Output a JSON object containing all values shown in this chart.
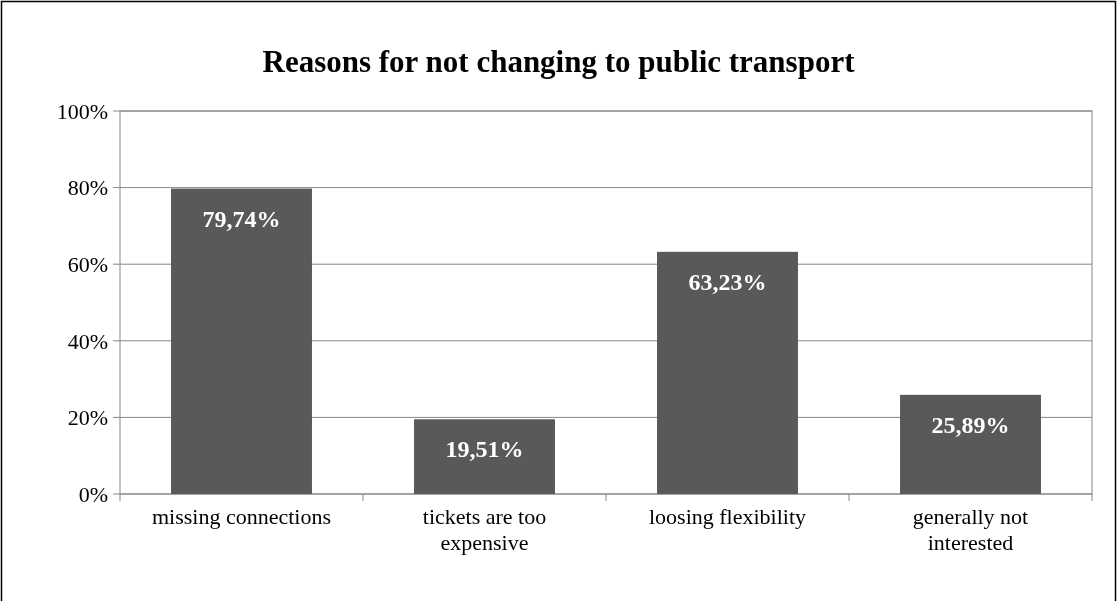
{
  "chart_data": {
    "type": "bar",
    "title": "Reasons for not changing to public transport",
    "categories": [
      "missing connections",
      "tickets are too expensive",
      "loosing flexibility",
      "generally not interested"
    ],
    "values": [
      79.74,
      19.51,
      63.23,
      25.89
    ],
    "value_labels": [
      "79,74%",
      "19,51%",
      "63,23%",
      "25,89%"
    ],
    "color": "#595959",
    "ylim": [
      0,
      100
    ],
    "yticks": [
      {
        "value": 0,
        "label": "0%"
      },
      {
        "value": 20,
        "label": "20%"
      },
      {
        "value": 40,
        "label": "40%"
      },
      {
        "value": 60,
        "label": "60%"
      },
      {
        "value": 80,
        "label": "80%"
      },
      {
        "value": 100,
        "label": "100%"
      }
    ],
    "grid": "y"
  }
}
